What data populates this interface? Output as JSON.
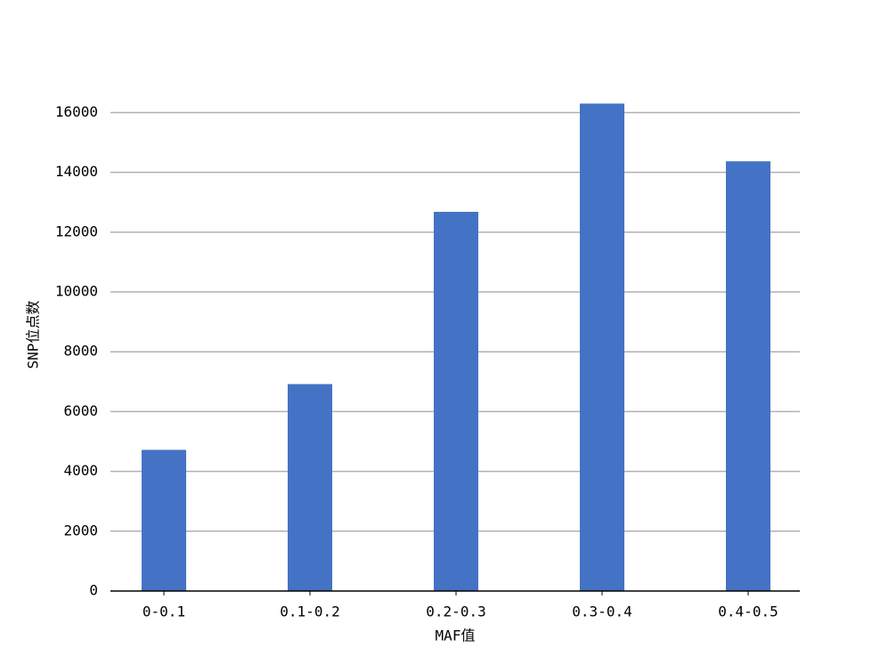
{
  "chart_data": {
    "type": "bar",
    "categories": [
      "0-0.1",
      "0.1-0.2",
      "0.2-0.3",
      "0.3-0.4",
      "0.4-0.5"
    ],
    "values": [
      4720,
      6920,
      12680,
      16300,
      14370
    ],
    "color": "#4472c4",
    "x_label": "MAF值",
    "y_label": "SNP位点数",
    "ylim": [
      0,
      17115
    ],
    "yticks": [
      0,
      2000,
      4000,
      6000,
      8000,
      10000,
      12000,
      14000,
      16000
    ],
    "grid": true
  }
}
